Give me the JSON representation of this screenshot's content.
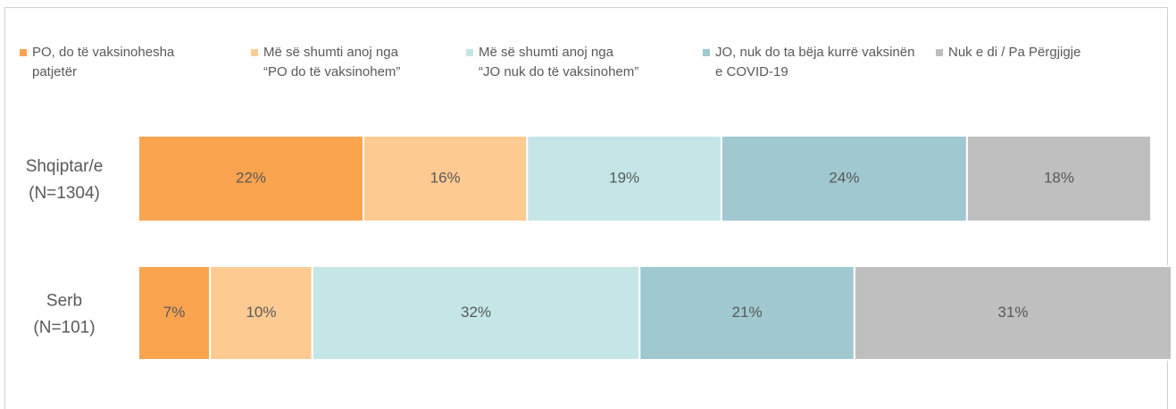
{
  "chart_data": {
    "type": "stacked-barh",
    "categories": [
      [
        "Shqiptar/e",
        "(N=1304)"
      ],
      [
        "Serb",
        "(N=101)"
      ]
    ],
    "xlim": [
      0,
      101
    ],
    "series": [
      {
        "name": "PO, do të vaksinohesha\npatjetër",
        "color": "#fba44f",
        "values": [
          22,
          7
        ],
        "value_labels": [
          "22%",
          "7%"
        ]
      },
      {
        "name": "Më së shumti anoj nga\n“PO do të vaksinohem”",
        "color": "#fdca92",
        "values": [
          16,
          10
        ],
        "value_labels": [
          "16%",
          "10%"
        ]
      },
      {
        "name": "Më së shumti anoj nga\n“JO nuk do të vaksinohem”",
        "color": "#c5e6e6",
        "values": [
          19,
          32
        ],
        "value_labels": [
          "19%",
          "32%"
        ]
      },
      {
        "name": "JO, nuk do ta bëja kurrë vaksinën\ne COVID-19",
        "color": "#9fc8d0",
        "values": [
          24,
          21
        ],
        "value_labels": [
          "24%",
          "21%"
        ]
      },
      {
        "name": "Nuk e di / Pa Përgjigje",
        "color": "#bfbfbf",
        "values": [
          18,
          31
        ],
        "value_labels": [
          "18%",
          "31%"
        ]
      }
    ]
  }
}
